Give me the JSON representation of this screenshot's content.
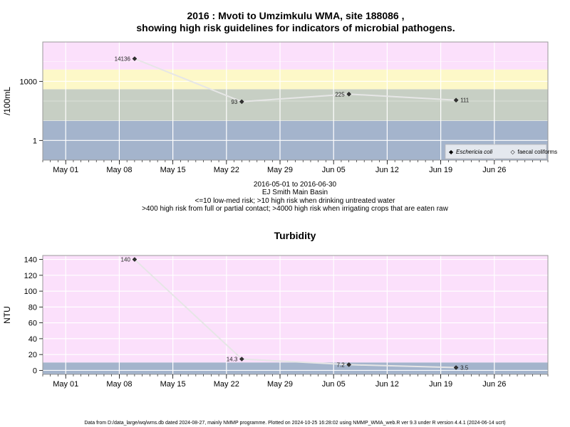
{
  "chart_data": [
    {
      "type": "line",
      "title_line1": "2016 : Mvoti to Umzimkulu WMA, site 188086 ,",
      "title_line2": "showing high risk guidelines for indicators of microbial pathogens.",
      "ylabel": "/100mL",
      "yscale": "log",
      "x_ticks": [
        "May 01",
        "May 08",
        "May 15",
        "May 22",
        "May 29",
        "Jun 05",
        "Jun 12",
        "Jun 19",
        "Jun 26"
      ],
      "x_tick_dates": [
        "2016-05-01",
        "2016-05-08",
        "2016-05-15",
        "2016-05-22",
        "2016-05-29",
        "2016-06-05",
        "2016-06-12",
        "2016-06-19",
        "2016-06-26"
      ],
      "xlim": [
        "2016-04-28",
        "2016-07-03"
      ],
      "y_ticks": [
        1,
        1000
      ],
      "ylim": [
        0.1,
        100000
      ],
      "bands": [
        {
          "from": 0.1,
          "to": 10,
          "color": "#a4b4cc"
        },
        {
          "from": 10,
          "to": 400,
          "color": "#c7cfc4"
        },
        {
          "from": 400,
          "to": 4000,
          "color": "#fdf8c8"
        },
        {
          "from": 4000,
          "to": 100000,
          "color": "#fbe0fb"
        }
      ],
      "series": [
        {
          "name": "Eschericia coli",
          "line_color": "#e6e6e6",
          "points": [
            {
              "x": "2016-05-10",
              "y": 14136,
              "label": "14136"
            },
            {
              "x": "2016-05-24",
              "y": 93,
              "label": "93"
            },
            {
              "x": "2016-06-07",
              "y": 225,
              "label": "225"
            },
            {
              "x": "2016-06-21",
              "y": 111,
              "label": "111"
            }
          ]
        }
      ],
      "legend": {
        "placement": "bottom-right",
        "entries": [
          {
            "symbol": "◆",
            "text": "Eschericia coli",
            "italic": true
          },
          {
            "symbol": "◇",
            "text": "faecal coliforms",
            "italic": false
          }
        ]
      },
      "captions": [
        "2016-05-01 to 2016-06-30",
        "EJ Smith Main Basin",
        "<=10 low-med risk; >10 high risk when drinking untreated water",
        ">400 high risk from full or partial contact; >4000 high risk when irrigating crops that are eaten raw"
      ]
    },
    {
      "type": "line",
      "title": "Turbidity",
      "ylabel": "NTU",
      "yscale": "linear",
      "x_ticks": [
        "May 01",
        "May 08",
        "May 15",
        "May 22",
        "May 29",
        "Jun 05",
        "Jun 12",
        "Jun 19",
        "Jun 26"
      ],
      "x_tick_dates": [
        "2016-05-01",
        "2016-05-08",
        "2016-05-15",
        "2016-05-22",
        "2016-05-29",
        "2016-06-05",
        "2016-06-12",
        "2016-06-19",
        "2016-06-26"
      ],
      "xlim": [
        "2016-04-28",
        "2016-07-03"
      ],
      "y_ticks": [
        0,
        20,
        40,
        60,
        80,
        100,
        120,
        140
      ],
      "ylim": [
        -5,
        145
      ],
      "bands": [
        {
          "from": -5,
          "to": 10,
          "color": "#a4b4cc"
        },
        {
          "from": 10,
          "to": 145,
          "color": "#fbe0fb"
        }
      ],
      "series": [
        {
          "name": "Turbidity",
          "line_color": "#e6e6e6",
          "points": [
            {
              "x": "2016-05-10",
              "y": 140,
              "label": "140"
            },
            {
              "x": "2016-05-24",
              "y": 14.3,
              "label": "14.3"
            },
            {
              "x": "2016-06-07",
              "y": 7.2,
              "label": "7.2"
            },
            {
              "x": "2016-06-21",
              "y": 3.5,
              "label": "3.5"
            }
          ]
        }
      ]
    }
  ],
  "footer": "Data from D:/data_large/wq/wms.db dated 2024-08-27, mainly NMMP programme. Plotted on 2024-10-25 16:28:02 using NMMP_WMA_web.R ver 9.3 under R version 4.4.1 (2024-06-14 ucrt)",
  "colors": {
    "grid": "#ffffff",
    "frame": "#999999",
    "point": "#333333"
  }
}
